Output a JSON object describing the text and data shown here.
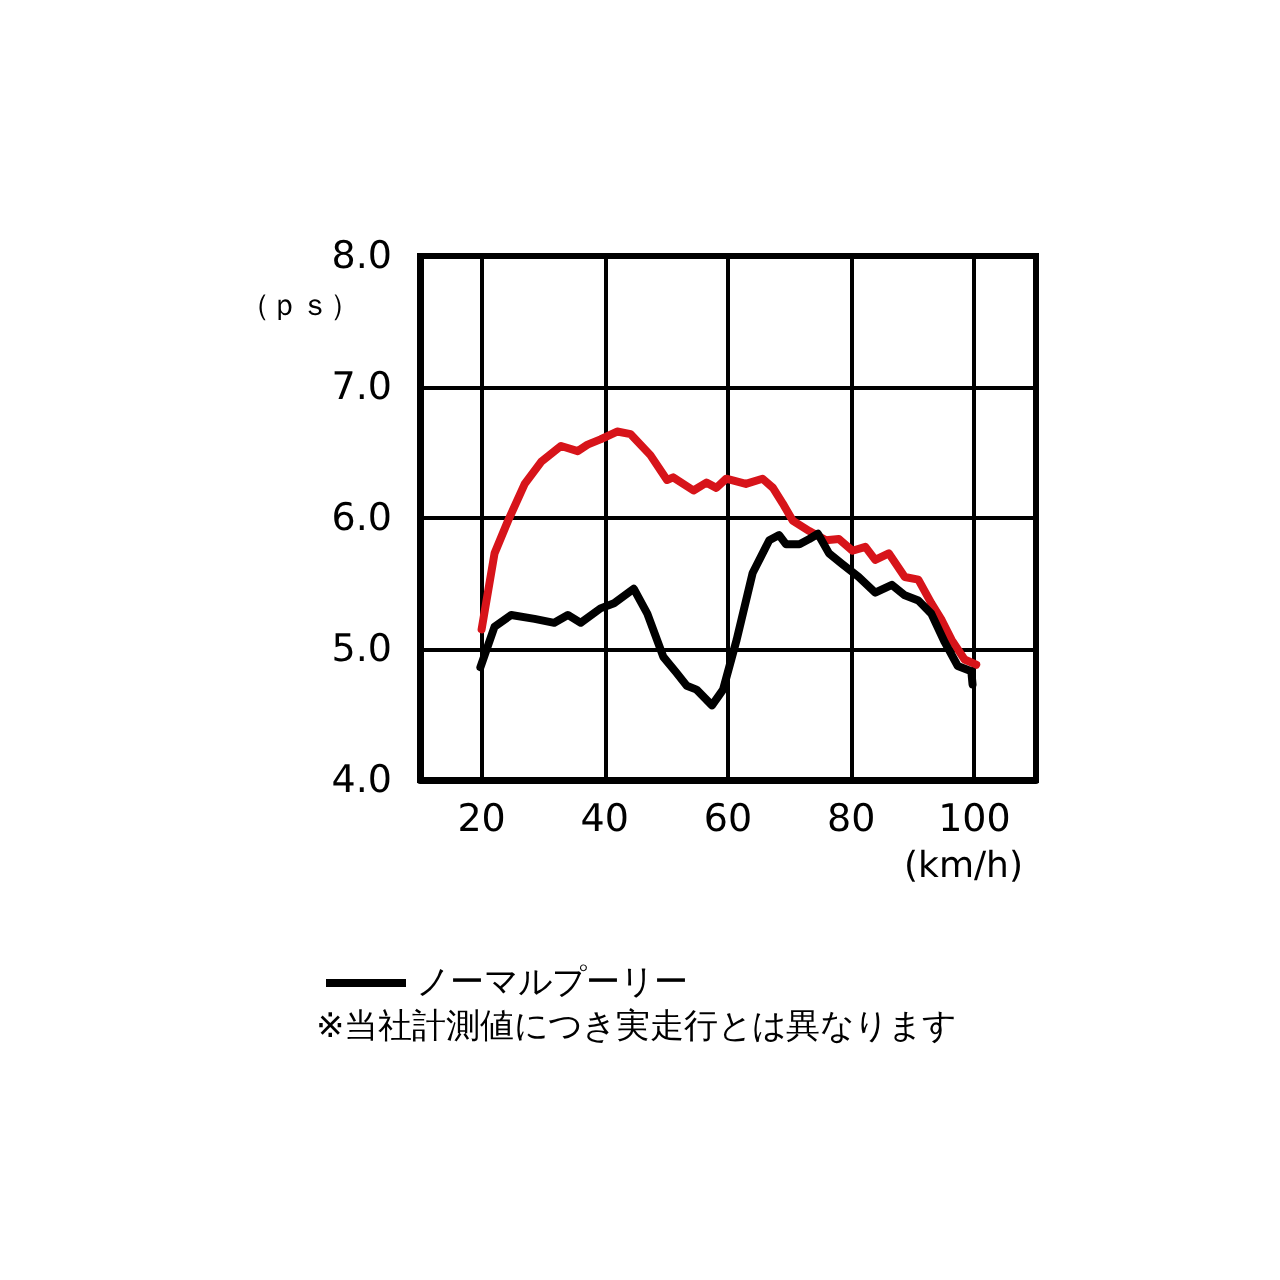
{
  "chart_data": {
    "type": "line",
    "xlabel": "(km/h)",
    "ylabel": "（ｐｓ）",
    "xlim": [
      10,
      110
    ],
    "xticks": [
      20,
      40,
      60,
      80,
      100
    ],
    "ylim": [
      4,
      8
    ],
    "yticks": [
      {
        "value": 4,
        "label": "4.0"
      },
      {
        "value": 5,
        "label": "5.0"
      },
      {
        "value": 6,
        "label": "6.0"
      },
      {
        "value": 7,
        "label": "7.0"
      },
      {
        "value": 8,
        "label": "8.0"
      }
    ],
    "grid": true,
    "legend": "bottom left",
    "marker": "none",
    "line_style": "solid",
    "series": [
      {
        "color": "#d7141a",
        "x": [
          20,
          22.1,
          24.3,
          27,
          29.7,
          32.9,
          35.6,
          37.2,
          39.3,
          42,
          44.2,
          47.4,
          50.1,
          51.1,
          54.4,
          56.5,
          58.1,
          59.7,
          62.9,
          65.6,
          67.3,
          68.9,
          70.5,
          73.2,
          75.9,
          78,
          80.2,
          82.3,
          83.9,
          86.1,
          88.7,
          90.9,
          93,
          94.7,
          96.3,
          98.4,
          100.3
        ],
        "values": [
          5.15,
          5.73,
          5.98,
          6.26,
          6.43,
          6.55,
          6.51,
          6.56,
          6.6,
          6.66,
          6.64,
          6.48,
          6.29,
          6.31,
          6.21,
          6.27,
          6.23,
          6.3,
          6.26,
          6.3,
          6.23,
          6.11,
          5.98,
          5.9,
          5.83,
          5.84,
          5.75,
          5.78,
          5.68,
          5.73,
          5.55,
          5.53,
          5.35,
          5.22,
          5.07,
          4.92,
          4.88
        ]
      },
      {
        "name": "ノーマルプーリー",
        "color": "#000000",
        "x": [
          19.8,
          22.1,
          24.8,
          28.6,
          31.8,
          34,
          36.1,
          39.3,
          41.5,
          44.7,
          46.9,
          49.5,
          51.6,
          53.3,
          54.9,
          57.4,
          59.2,
          61.4,
          64,
          66.7,
          68.3,
          69.4,
          71.6,
          73.2,
          74.6,
          76.4,
          78.5,
          81.2,
          83.9,
          86.6,
          88.7,
          90.9,
          93,
          95.2,
          97.3,
          99.5,
          99.7
        ],
        "values": [
          4.86,
          5.17,
          5.26,
          5.23,
          5.2,
          5.26,
          5.2,
          5.31,
          5.35,
          5.46,
          5.27,
          4.94,
          4.82,
          4.72,
          4.69,
          4.57,
          4.69,
          5.07,
          5.58,
          5.83,
          5.87,
          5.8,
          5.8,
          5.84,
          5.88,
          5.73,
          5.65,
          5.55,
          5.43,
          5.49,
          5.41,
          5.37,
          5.27,
          5.05,
          4.87,
          4.83,
          4.73
        ]
      }
    ],
    "annotations": [
      "※当社計測値につき実走行とは異なります"
    ]
  }
}
